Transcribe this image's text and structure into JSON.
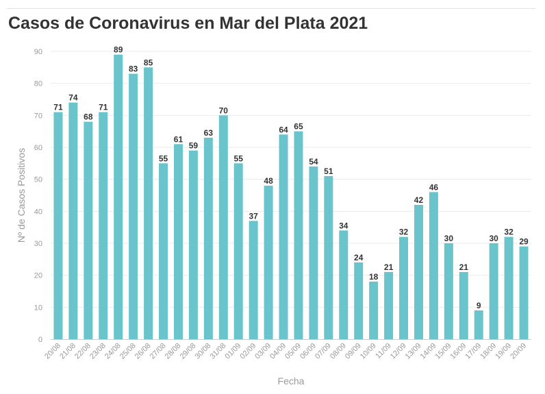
{
  "chart_data": {
    "type": "bar",
    "title": "Casos de Coronavirus en Mar del Plata 2021",
    "xlabel": "Fecha",
    "ylabel": "Nº de Casos Positivos",
    "ylim": [
      0,
      90
    ],
    "yticks": [
      0,
      10,
      20,
      30,
      40,
      50,
      60,
      70,
      80,
      90
    ],
    "grid": true,
    "bar_color": "#69c4cb",
    "categories": [
      "20/08",
      "21/08",
      "22/08",
      "23/08",
      "24/08",
      "25/08",
      "26/08",
      "27/08",
      "28/08",
      "29/08",
      "30/08",
      "31/08",
      "01/09",
      "02/09",
      "03/09",
      "04/09",
      "05/09",
      "06/09",
      "07/09",
      "08/09",
      "09/09",
      "10/09",
      "11/09",
      "12/09",
      "13/09",
      "14/09",
      "15/09",
      "16/09",
      "17/09",
      "18/09",
      "19/09",
      "20/09"
    ],
    "values": [
      71,
      74,
      68,
      71,
      89,
      83,
      85,
      55,
      61,
      59,
      63,
      70,
      55,
      37,
      48,
      64,
      65,
      54,
      51,
      34,
      24,
      18,
      21,
      32,
      42,
      46,
      30,
      21,
      9,
      30,
      32,
      29
    ]
  }
}
